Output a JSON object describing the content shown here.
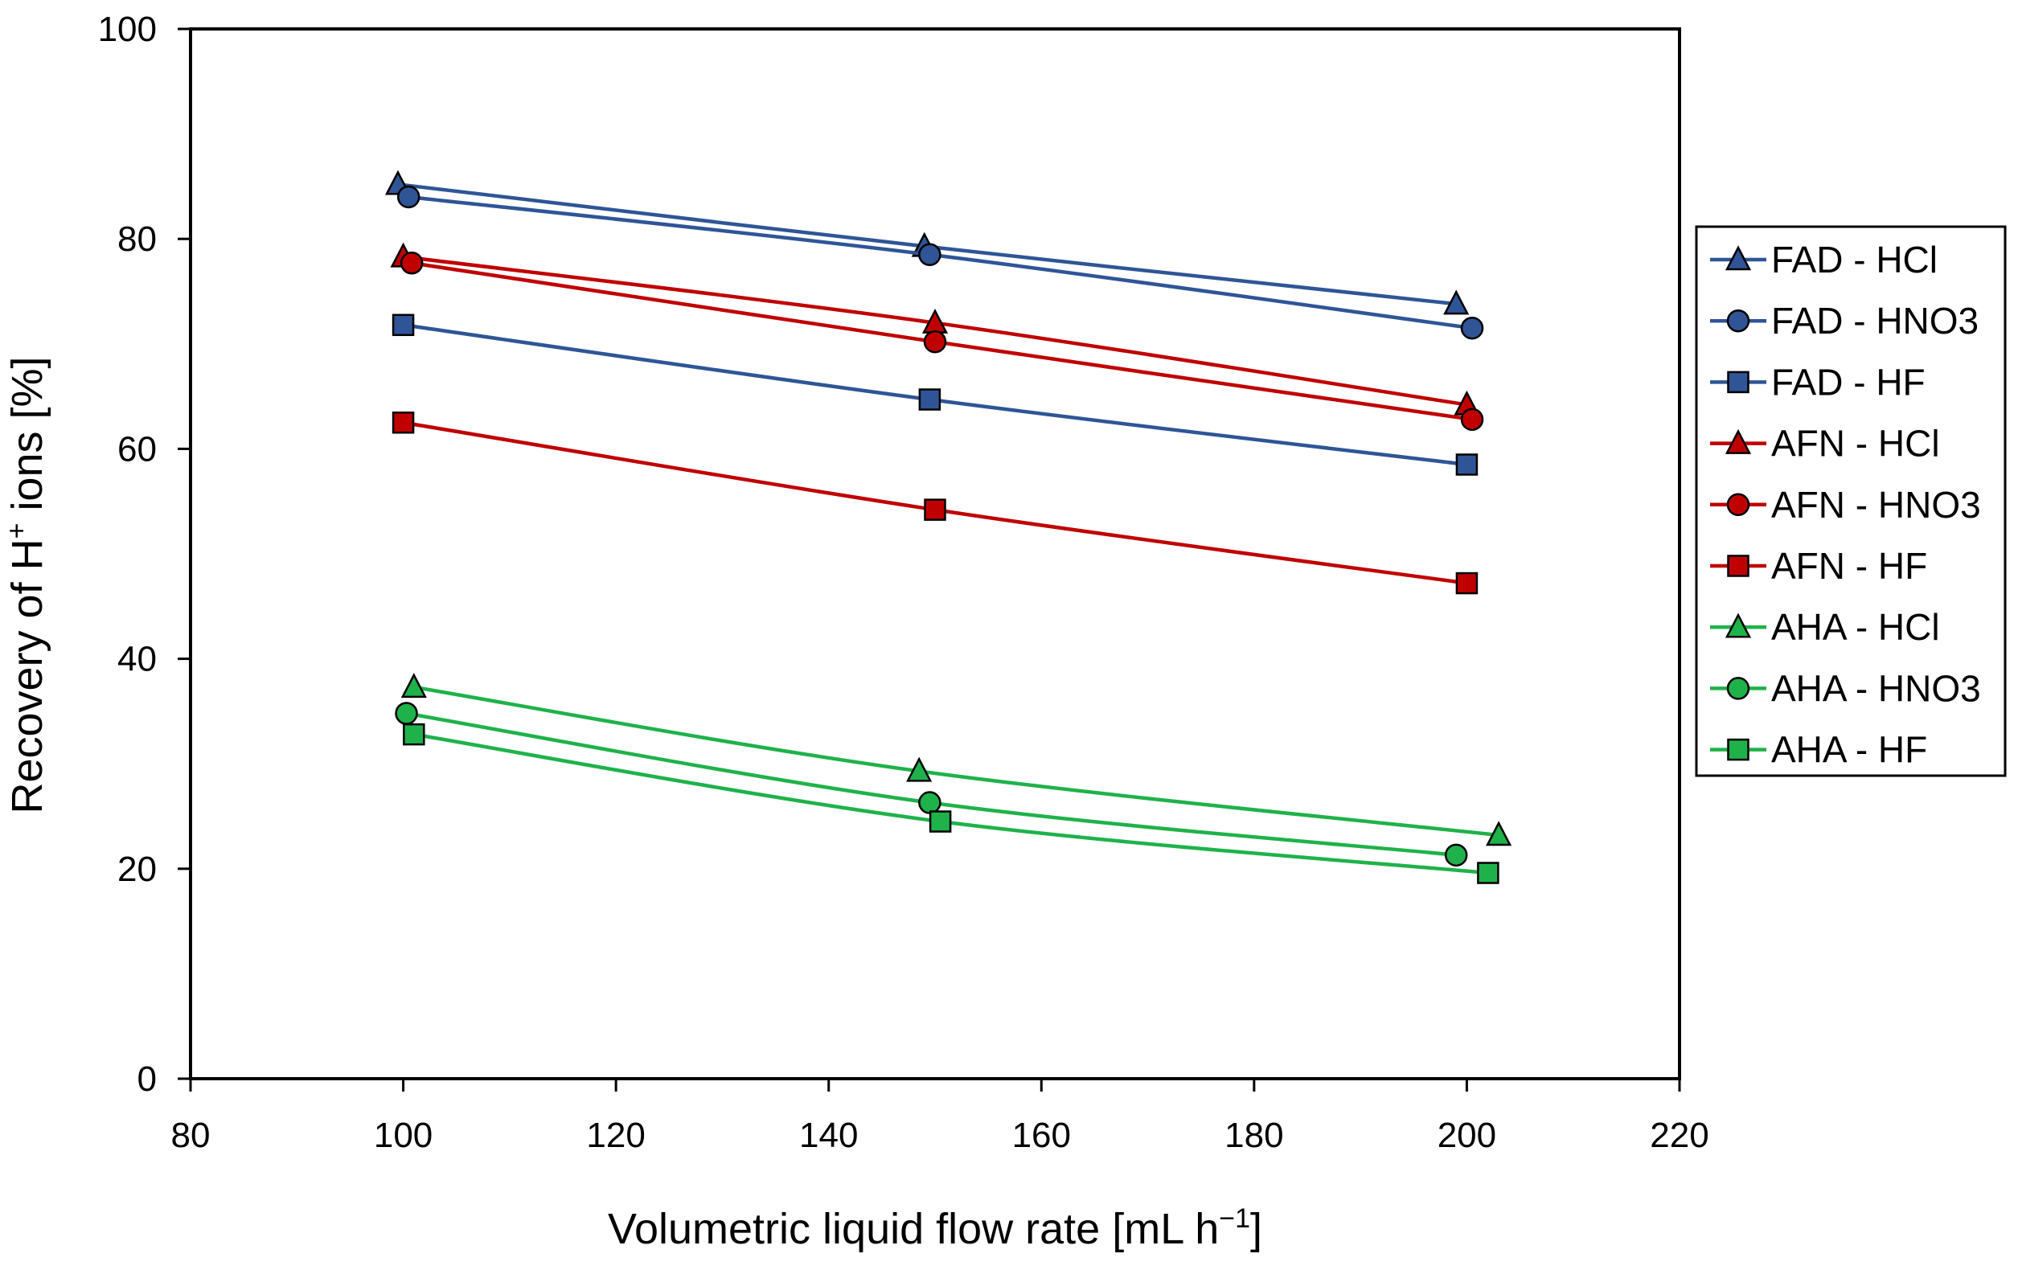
{
  "chart_data": {
    "type": "line",
    "xlabel_main": "Volumetric liquid flow rate  [mL h",
    "xlabel_sup": "−1",
    "xlabel_end": "]",
    "ylabel_main": "Recovery of H",
    "ylabel_sup": "+",
    "ylabel_end": " ions [%]",
    "xlim": [
      80,
      220
    ],
    "ylim": [
      0,
      100
    ],
    "xticks": [
      80,
      100,
      120,
      140,
      160,
      180,
      200,
      220
    ],
    "yticks": [
      0,
      20,
      40,
      60,
      80,
      100
    ],
    "series": [
      {
        "name": "FAD - HCl",
        "color": "#2F5597",
        "marker": "triangle",
        "x": [
          99.5,
          149,
          199
        ],
        "y": [
          85.2,
          79.3,
          73.8
        ]
      },
      {
        "name": "FAD - HNO3",
        "color": "#2F5597",
        "marker": "circle",
        "x": [
          100.5,
          149.5,
          200.5
        ],
        "y": [
          84.0,
          78.5,
          71.5
        ]
      },
      {
        "name": "FAD - HF",
        "color": "#2F5597",
        "marker": "square",
        "x": [
          100,
          149.5,
          200
        ],
        "y": [
          71.8,
          64.7,
          58.5
        ]
      },
      {
        "name": "AFN - HCl",
        "color": "#C00000",
        "marker": "triangle",
        "x": [
          100,
          150,
          200
        ],
        "y": [
          78.3,
          72.0,
          64.2
        ]
      },
      {
        "name": "AFN - HNO3",
        "color": "#C00000",
        "marker": "circle",
        "x": [
          100.8,
          150,
          200.5
        ],
        "y": [
          77.7,
          70.2,
          62.8
        ]
      },
      {
        "name": "AFN - HF",
        "color": "#C00000",
        "marker": "square",
        "x": [
          100,
          150,
          200
        ],
        "y": [
          62.5,
          54.2,
          47.2
        ]
      },
      {
        "name": "AHA - HCl",
        "color": "#1FB24A",
        "marker": "triangle",
        "x": [
          101,
          148.5,
          203
        ],
        "y": [
          37.3,
          29.3,
          23.2
        ]
      },
      {
        "name": "AHA - HNO3",
        "color": "#1FB24A",
        "marker": "circle",
        "x": [
          100.3,
          149.5,
          199
        ],
        "y": [
          34.8,
          26.3,
          21.3
        ]
      },
      {
        "name": "AHA - HF",
        "color": "#1FB24A",
        "marker": "square",
        "x": [
          101,
          150.5,
          202
        ],
        "y": [
          32.8,
          24.5,
          19.6
        ]
      }
    ]
  }
}
